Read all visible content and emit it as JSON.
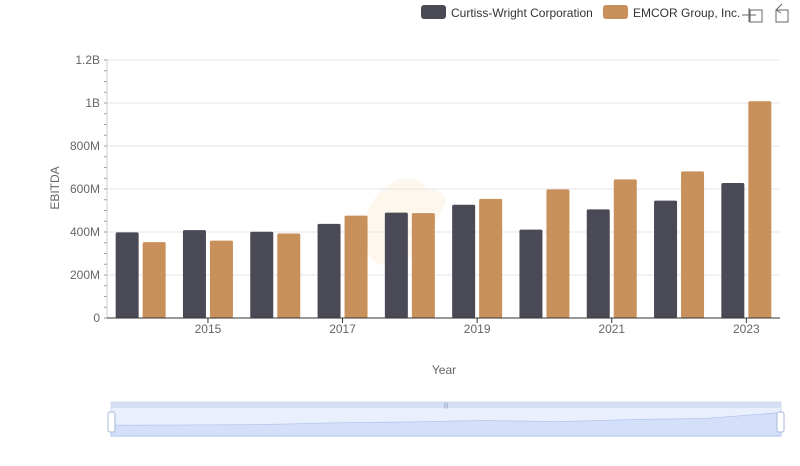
{
  "chart_data": {
    "type": "bar",
    "title": "",
    "xlabel": "Year",
    "ylabel": "EBITDA",
    "ylim": [
      0,
      1200000000
    ],
    "y_ticks": [
      {
        "value": 0,
        "label": "0"
      },
      {
        "value": 200000000,
        "label": "200M"
      },
      {
        "value": 400000000,
        "label": "400M"
      },
      {
        "value": 600000000,
        "label": "600M"
      },
      {
        "value": 800000000,
        "label": "800M"
      },
      {
        "value": 1000000000,
        "label": "1B"
      },
      {
        "value": 1200000000,
        "label": "1.2B"
      }
    ],
    "categories": [
      "2014",
      "2015",
      "2016",
      "2017",
      "2018",
      "2019",
      "2020",
      "2021",
      "2022",
      "2023"
    ],
    "x_tick_labels": [
      "2015",
      "2017",
      "2019",
      "2021",
      "2023"
    ],
    "series": [
      {
        "name": "Curtiss-Wright Corporation",
        "color": "#4a4a56",
        "values": [
          398000000,
          409000000,
          401000000,
          438000000,
          490000000,
          527000000,
          411000000,
          505000000,
          546000000,
          628000000
        ]
      },
      {
        "name": "EMCOR Group, Inc.",
        "color": "#c8905a",
        "values": [
          353000000,
          360000000,
          393000000,
          476000000,
          488000000,
          554000000,
          598000000,
          645000000,
          682000000,
          1008000000
        ]
      }
    ],
    "grid": true,
    "legend": "top-right",
    "zoom_slider": true
  },
  "legend": {
    "items": [
      {
        "label": "Curtiss-Wright Corporation",
        "color": "#4a4a56"
      },
      {
        "label": "EMCOR Group, Inc.",
        "color": "#c8905a"
      }
    ]
  },
  "toolbar": {
    "zoom_icon": "zoom-area-icon",
    "restore_icon": "restore-icon"
  },
  "colors": {
    "grid": "#e6e6e6",
    "axis": "#333333",
    "text": "#666666",
    "slider_fill": "#dfe8fb",
    "slider_border": "#b6c5ea"
  }
}
